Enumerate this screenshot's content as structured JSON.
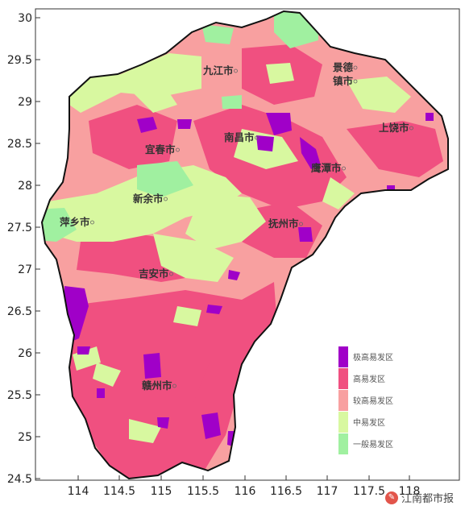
{
  "map": {
    "x_ticks": [
      "114",
      "114.5",
      "115",
      "115.5",
      "116",
      "116.5",
      "117",
      "117.5",
      "118"
    ],
    "y_ticks": [
      "24.5",
      "25",
      "25.5",
      "26",
      "26.5",
      "27",
      "27.5",
      "28",
      "28.5",
      "29",
      "29.5",
      "30"
    ],
    "cities": [
      {
        "id": "jiujiang",
        "name": "九江市"
      },
      {
        "id": "jingdezhen_1",
        "name": "景德"
      },
      {
        "id": "jingdezhen_2",
        "name": "镇市"
      },
      {
        "id": "nanchang",
        "name": "南昌市"
      },
      {
        "id": "shangrao",
        "name": "上饶市"
      },
      {
        "id": "yichun",
        "name": "宜春市"
      },
      {
        "id": "yingtan",
        "name": "鹰潭市"
      },
      {
        "id": "xinyu",
        "name": "新余市"
      },
      {
        "id": "pingxiang",
        "name": "萍乡市"
      },
      {
        "id": "fuzhou",
        "name": "抚州市"
      },
      {
        "id": "jian",
        "name": "吉安市"
      },
      {
        "id": "ganzhou",
        "name": "赣州市"
      }
    ]
  },
  "legend": [
    {
      "label": "极高易发区",
      "color": "#a000c8"
    },
    {
      "label": "高易发区",
      "color": "#f05080"
    },
    {
      "label": "较高易发区",
      "color": "#f8a0a0"
    },
    {
      "label": "中易发区",
      "color": "#d8f8a0"
    },
    {
      "label": "一般易发区",
      "color": "#a0f0a0"
    }
  ],
  "watermark": {
    "text": "江南都市报"
  }
}
